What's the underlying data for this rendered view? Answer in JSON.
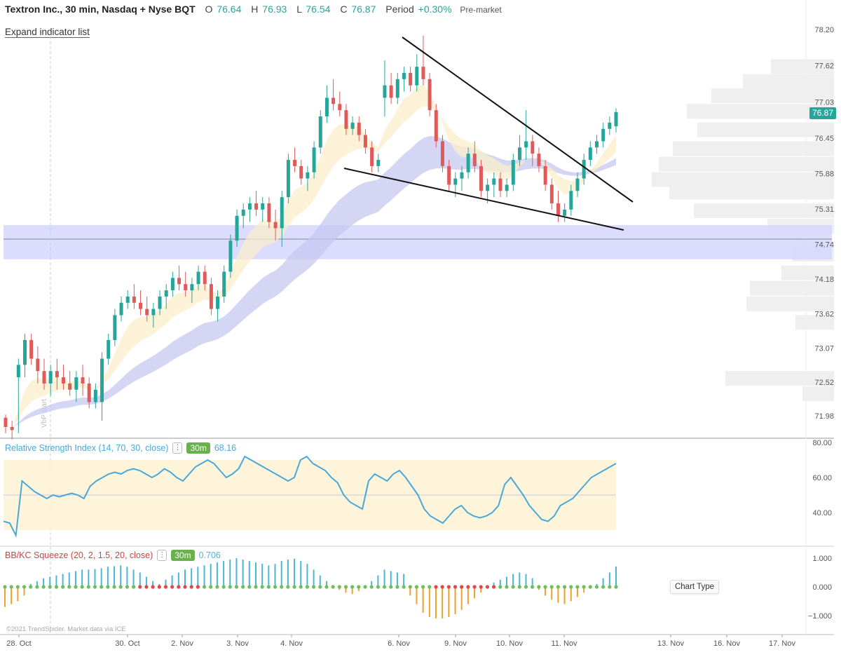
{
  "header": {
    "symbol": "Textron Inc., 30 min, Nasdaq + Nyse BQT",
    "o_label": "O",
    "o_value": "76.64",
    "h_label": "H",
    "h_value": "76.93",
    "l_label": "L",
    "l_value": "76.54",
    "c_label": "C",
    "c_value": "76.87",
    "period_label": "Period",
    "period_value": "+0.30%",
    "premarket": "Pre-market"
  },
  "expand_label": "Expand indicator list",
  "last_price": "76.87",
  "price_axis_ticks": [
    "78.20",
    "77.62",
    "77.03",
    "76.45",
    "75.88",
    "75.31",
    "74.74",
    "74.18",
    "73.62",
    "73.07",
    "72.52",
    "71.98"
  ],
  "date_ticks": [
    "28. Oct",
    "30. Oct",
    "2. Nov",
    "3. Nov",
    "4. Nov",
    "6. Nov",
    "9. Nov",
    "10. Nov",
    "11. Nov",
    "13. Nov",
    "16. Nov",
    "17. Nov"
  ],
  "vbp_label": "VbP start",
  "rsi": {
    "label": "Relative Strength Index (14, 70, 30, close)",
    "timeframe": "30m",
    "value": "68.16",
    "ticks": [
      "80.00",
      "60.00",
      "40.00"
    ]
  },
  "squeeze": {
    "label": "BB/KC Squeeze (20, 2, 1.5, 20, close)",
    "timeframe": "30m",
    "value": "0.706",
    "ticks": [
      "1.000",
      "0.000",
      "−1.000"
    ]
  },
  "chart_type_label": "Chart Type",
  "copyright": "©2021 TrendSpider. Market data via ICE",
  "colors": {
    "up": "#26a69a",
    "down": "#e05a5a",
    "rsi_line": "#4aa8d8",
    "squeeze_pos": "#4db6d6",
    "squeeze_neg": "#f0a030",
    "squeeze_dot_on": "#e04848",
    "squeeze_dot_off": "#6cbf5a",
    "zone": "#d6d6ff",
    "ribbon_slow": "#c5c8f0",
    "ribbon_fast": "#fbeecb"
  },
  "chart_data": [
    {
      "type": "candlestick",
      "title": "Textron Inc., 30 min, Nasdaq + Nyse BQT",
      "ylim": [
        71.7,
        78.3
      ],
      "x_range": [
        "28. Oct",
        "17. Nov"
      ],
      "last_close": 76.87,
      "ohlc_approx": [
        [
          71.95,
          72.0,
          71.7,
          71.8
        ],
        [
          71.8,
          71.9,
          71.6,
          71.75
        ],
        [
          72.6,
          72.9,
          71.7,
          72.8
        ],
        [
          72.8,
          73.3,
          72.6,
          73.2
        ],
        [
          73.2,
          73.3,
          72.8,
          72.9
        ],
        [
          72.9,
          73.1,
          72.5,
          72.7
        ],
        [
          72.7,
          72.9,
          72.4,
          72.5
        ],
        [
          72.5,
          72.8,
          72.3,
          72.7
        ],
        [
          72.7,
          72.9,
          72.4,
          72.6
        ],
        [
          72.6,
          72.8,
          72.4,
          72.5
        ],
        [
          72.5,
          72.7,
          72.3,
          72.4
        ],
        [
          72.4,
          72.7,
          72.2,
          72.6
        ],
        [
          72.6,
          72.8,
          72.3,
          72.5
        ],
        [
          72.5,
          72.6,
          72.1,
          72.2
        ],
        [
          72.2,
          72.5,
          72.1,
          72.4
        ],
        [
          72.2,
          73.0,
          71.9,
          72.9
        ],
        [
          72.9,
          73.3,
          72.8,
          73.2
        ],
        [
          73.2,
          73.7,
          73.1,
          73.6
        ],
        [
          73.6,
          73.9,
          73.5,
          73.8
        ],
        [
          73.8,
          74.0,
          73.7,
          73.9
        ],
        [
          73.9,
          74.1,
          73.7,
          73.8
        ],
        [
          73.8,
          74.0,
          73.6,
          73.7
        ],
        [
          73.7,
          73.9,
          73.5,
          73.6
        ],
        [
          73.6,
          73.8,
          73.4,
          73.7
        ],
        [
          73.7,
          74.0,
          73.6,
          73.9
        ],
        [
          73.9,
          74.1,
          73.7,
          74.0
        ],
        [
          74.0,
          74.3,
          73.9,
          74.2
        ],
        [
          74.2,
          74.4,
          74.0,
          74.1
        ],
        [
          74.1,
          74.3,
          73.9,
          74.0
        ],
        [
          74.0,
          74.2,
          73.8,
          74.1
        ],
        [
          74.1,
          74.4,
          74.0,
          74.3
        ],
        [
          74.3,
          74.4,
          74.0,
          74.1
        ],
        [
          74.1,
          74.2,
          73.6,
          73.7
        ],
        [
          73.7,
          74.0,
          73.5,
          73.9
        ],
        [
          73.9,
          74.4,
          73.8,
          74.3
        ],
        [
          74.3,
          74.9,
          74.2,
          74.8
        ],
        [
          74.8,
          75.3,
          74.7,
          75.2
        ],
        [
          75.2,
          75.4,
          75.0,
          75.3
        ],
        [
          75.3,
          75.5,
          75.1,
          75.4
        ],
        [
          75.4,
          75.6,
          75.2,
          75.3
        ],
        [
          75.3,
          75.5,
          75.1,
          75.4
        ],
        [
          75.4,
          75.5,
          75.0,
          75.1
        ],
        [
          75.1,
          75.3,
          74.8,
          75.0
        ],
        [
          75.0,
          75.6,
          74.7,
          75.5
        ],
        [
          75.5,
          76.2,
          75.4,
          76.1
        ],
        [
          76.1,
          76.3,
          75.9,
          76.0
        ],
        [
          76.0,
          76.1,
          75.7,
          75.8
        ],
        [
          75.8,
          76.0,
          75.6,
          75.9
        ],
        [
          75.9,
          76.4,
          75.8,
          76.3
        ],
        [
          76.3,
          76.9,
          76.2,
          76.8
        ],
        [
          76.8,
          77.3,
          76.7,
          77.1
        ],
        [
          77.1,
          77.4,
          76.9,
          77.0
        ],
        [
          77.0,
          77.2,
          76.8,
          76.9
        ],
        [
          76.9,
          77.0,
          76.5,
          76.6
        ],
        [
          76.6,
          76.8,
          76.5,
          76.7
        ],
        [
          76.7,
          76.8,
          76.4,
          76.5
        ],
        [
          76.5,
          76.6,
          76.2,
          76.3
        ],
        [
          76.3,
          76.4,
          75.9,
          76.0
        ],
        [
          76.0,
          76.2,
          75.9,
          76.1
        ],
        [
          77.1,
          77.7,
          76.8,
          77.3
        ],
        [
          77.3,
          77.5,
          77.0,
          77.1
        ],
        [
          77.1,
          77.5,
          77.0,
          77.4
        ],
        [
          77.4,
          77.6,
          77.2,
          77.5
        ],
        [
          77.5,
          77.6,
          77.2,
          77.3
        ],
        [
          77.3,
          77.8,
          77.2,
          77.6
        ],
        [
          77.6,
          78.1,
          77.3,
          77.4
        ],
        [
          77.4,
          77.5,
          76.8,
          76.9
        ],
        [
          76.9,
          77.0,
          76.3,
          76.4
        ],
        [
          76.4,
          76.5,
          75.9,
          76.0
        ],
        [
          76.0,
          76.1,
          75.6,
          75.7
        ],
        [
          75.7,
          75.9,
          75.5,
          75.8
        ],
        [
          75.8,
          76.0,
          75.6,
          75.9
        ],
        [
          75.9,
          76.3,
          75.8,
          76.2
        ],
        [
          76.2,
          76.4,
          75.9,
          76.0
        ],
        [
          76.0,
          76.1,
          75.5,
          75.6
        ],
        [
          75.6,
          75.8,
          75.4,
          75.7
        ],
        [
          75.7,
          75.9,
          75.5,
          75.8
        ],
        [
          75.8,
          75.9,
          75.5,
          75.6
        ],
        [
          75.6,
          75.8,
          75.5,
          75.7
        ],
        [
          75.7,
          76.2,
          75.6,
          76.1
        ],
        [
          76.1,
          76.5,
          76.0,
          76.3
        ],
        [
          76.3,
          76.9,
          76.1,
          76.4
        ],
        [
          76.4,
          76.5,
          76.0,
          76.2
        ],
        [
          76.2,
          76.3,
          75.9,
          76.0
        ],
        [
          76.0,
          76.1,
          75.6,
          75.7
        ],
        [
          75.7,
          75.8,
          75.3,
          75.4
        ],
        [
          75.4,
          75.6,
          75.1,
          75.2
        ],
        [
          75.2,
          75.4,
          75.1,
          75.3
        ],
        [
          75.3,
          75.7,
          75.2,
          75.6
        ],
        [
          75.6,
          75.9,
          75.5,
          75.8
        ],
        [
          75.8,
          76.2,
          75.7,
          76.1
        ],
        [
          76.1,
          76.4,
          76.0,
          76.3
        ],
        [
          76.3,
          76.5,
          76.2,
          76.4
        ],
        [
          76.4,
          76.7,
          76.3,
          76.6
        ],
        [
          76.6,
          76.8,
          76.5,
          76.7
        ],
        [
          76.64,
          76.93,
          76.54,
          76.87
        ]
      ],
      "support_zone": [
        74.5,
        75.05
      ],
      "trendlines": [
        "upper line from 6. Nov high 78.1 descending",
        "lower line from 4. Nov low 75.9 descending"
      ]
    },
    {
      "type": "line",
      "title": "Relative Strength Index (14, 70, 30, close)",
      "ylim": [
        25,
        80
      ],
      "band": [
        30,
        70
      ],
      "last_value": 68.16,
      "values": [
        35,
        34,
        27,
        58,
        55,
        52,
        50,
        48,
        50,
        49,
        50,
        51,
        50,
        48,
        55,
        58,
        60,
        62,
        63,
        62,
        64,
        65,
        64,
        62,
        60,
        62,
        65,
        63,
        60,
        58,
        62,
        66,
        68,
        70,
        68,
        64,
        60,
        62,
        65,
        72,
        70,
        68,
        66,
        64,
        62,
        60,
        58,
        60,
        70,
        72,
        68,
        66,
        64,
        60,
        57,
        50,
        46,
        44,
        42,
        58,
        62,
        60,
        58,
        62,
        64,
        60,
        55,
        50,
        42,
        38,
        36,
        34,
        38,
        42,
        44,
        40,
        38,
        37,
        38,
        40,
        44,
        56,
        60,
        55,
        50,
        44,
        40,
        36,
        35,
        38,
        44,
        46,
        48,
        52,
        56,
        60,
        62,
        64,
        66,
        68
      ]
    },
    {
      "type": "bar",
      "title": "BB/KC Squeeze (20, 2, 1.5, 20, close)",
      "ylim": [
        -1.2,
        1.1
      ],
      "last_value": 0.706,
      "values": [
        -0.7,
        -0.6,
        -0.5,
        -0.3,
        0.1,
        0.2,
        0.3,
        0.35,
        0.4,
        0.45,
        0.5,
        0.55,
        0.6,
        0.6,
        0.62,
        0.65,
        0.7,
        0.72,
        0.75,
        0.7,
        0.6,
        0.5,
        0.35,
        0.2,
        0.1,
        0.25,
        0.4,
        0.5,
        0.6,
        0.65,
        0.7,
        0.75,
        0.8,
        0.85,
        0.9,
        0.95,
        1.0,
        0.95,
        0.9,
        0.85,
        0.8,
        0.75,
        0.8,
        0.9,
        0.95,
        0.98,
        0.9,
        0.8,
        0.6,
        0.4,
        0.2,
        0.05,
        -0.1,
        -0.2,
        -0.25,
        -0.15,
        0.05,
        0.2,
        0.4,
        0.6,
        0.55,
        0.5,
        0.45,
        -0.3,
        -0.6,
        -0.9,
        -1.05,
        -1.1,
        -1.1,
        -1.05,
        -0.95,
        -0.8,
        -0.6,
        -0.4,
        -0.2,
        0.05,
        0.15,
        0.25,
        0.35,
        0.45,
        0.5,
        0.45,
        0.3,
        -0.1,
        -0.3,
        -0.45,
        -0.55,
        -0.6,
        -0.5,
        -0.35,
        -0.2,
        -0.05,
        0.1,
        0.3,
        0.5,
        0.706
      ],
      "squeeze_on": [
        21,
        22,
        23,
        24,
        25,
        26,
        27,
        28,
        29,
        30,
        67,
        68,
        69,
        70,
        71,
        72,
        73,
        74,
        75,
        76
      ]
    }
  ]
}
